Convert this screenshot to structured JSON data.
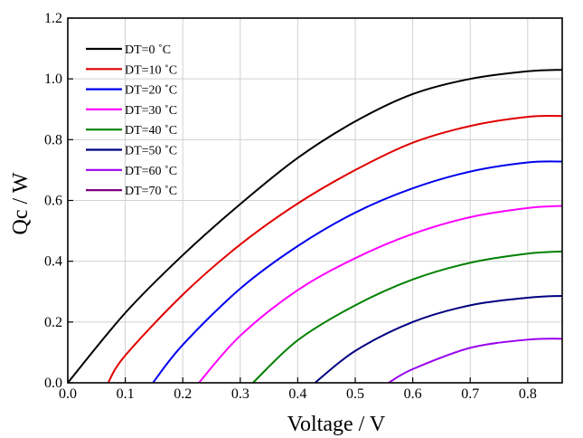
{
  "chart_data": {
    "type": "line",
    "title": "",
    "xlabel": "Voltage / V",
    "ylabel": "Qc / W",
    "xlim": [
      0.0,
      0.86
    ],
    "ylim": [
      0.0,
      1.2
    ],
    "x_ticks": [
      "0.0",
      "0.1",
      "0.2",
      "0.3",
      "0.4",
      "0.5",
      "0.6",
      "0.7",
      "0.8"
    ],
    "y_ticks": [
      "0.0",
      "0.2",
      "0.4",
      "0.6",
      "0.8",
      "1.0",
      "1.2"
    ],
    "grid": true,
    "legend_position": "top-left",
    "series": [
      {
        "name": "DT=0 ˚C",
        "color": "#000000",
        "x": [
          0.0,
          0.1,
          0.2,
          0.3,
          0.4,
          0.5,
          0.6,
          0.7,
          0.8,
          0.86
        ],
        "y": [
          0.0,
          0.23,
          0.42,
          0.588,
          0.74,
          0.86,
          0.95,
          1.0,
          1.025,
          1.03
        ]
      },
      {
        "name": "DT=10 ˚C",
        "color": "#e00000",
        "x": [
          0.07,
          0.1,
          0.2,
          0.3,
          0.4,
          0.5,
          0.6,
          0.7,
          0.8,
          0.86
        ],
        "y": [
          0.0,
          0.09,
          0.29,
          0.455,
          0.59,
          0.7,
          0.79,
          0.845,
          0.875,
          0.878
        ]
      },
      {
        "name": "DT=20 ˚C",
        "color": "#0000ee",
        "x": [
          0.148,
          0.2,
          0.3,
          0.4,
          0.5,
          0.6,
          0.7,
          0.8,
          0.86
        ],
        "y": [
          0.0,
          0.125,
          0.31,
          0.45,
          0.56,
          0.64,
          0.695,
          0.725,
          0.728
        ]
      },
      {
        "name": "DT=30 ˚C",
        "color": "#ff00ff",
        "x": [
          0.228,
          0.3,
          0.4,
          0.5,
          0.6,
          0.7,
          0.8,
          0.86
        ],
        "y": [
          0.0,
          0.155,
          0.305,
          0.41,
          0.49,
          0.545,
          0.575,
          0.582
        ]
      },
      {
        "name": "DT=40 ˚C",
        "color": "#008000",
        "x": [
          0.322,
          0.4,
          0.5,
          0.6,
          0.7,
          0.8,
          0.86
        ],
        "y": [
          0.0,
          0.14,
          0.255,
          0.34,
          0.395,
          0.425,
          0.432
        ]
      },
      {
        "name": "DT=50 ˚C",
        "color": "#000080",
        "x": [
          0.43,
          0.5,
          0.6,
          0.7,
          0.8,
          0.86
        ],
        "y": [
          0.0,
          0.105,
          0.2,
          0.255,
          0.28,
          0.286
        ]
      },
      {
        "name": "DT=60 ˚C",
        "color": "#9900ee",
        "x": [
          0.558,
          0.6,
          0.7,
          0.8,
          0.86
        ],
        "y": [
          0.0,
          0.045,
          0.115,
          0.142,
          0.145
        ]
      },
      {
        "name": "DT=70 ˚C",
        "color": "#800080",
        "x": [],
        "y": []
      }
    ]
  }
}
